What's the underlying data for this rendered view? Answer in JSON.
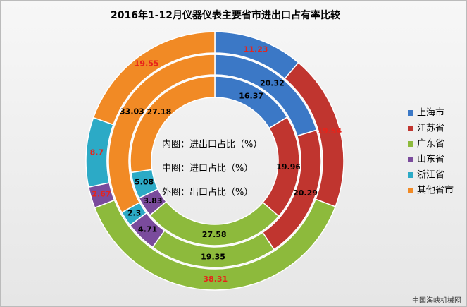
{
  "chart_data": {
    "type": "donut",
    "title": "2016年1-12月仪器仪表主要省市进出口占有率比较",
    "categories": [
      "上海市",
      "江苏省",
      "广东省",
      "山东省",
      "浙江省",
      "其他省市"
    ],
    "colors": [
      "#3b78c6",
      "#c0352f",
      "#8dba3c",
      "#7a4b9c",
      "#2caac6",
      "#f18a25"
    ],
    "series": [
      {
        "name": "内圈：进出口占比（%）",
        "label_color": "#000000",
        "values": [
          16.37,
          19.96,
          27.58,
          3.83,
          5.08,
          27.18
        ]
      },
      {
        "name": "中圈：进口占比（%）",
        "label_color": "#000000",
        "values": [
          20.32,
          20.29,
          19.35,
          4.71,
          2.3,
          33.03
        ]
      },
      {
        "name": "外圈：出口占比（%）",
        "label_color": "#e8231a",
        "values": [
          11.23,
          19.54,
          38.31,
          2.67,
          8.7,
          19.55
        ]
      }
    ],
    "legend": "right",
    "source": "中国海峡机械网"
  }
}
